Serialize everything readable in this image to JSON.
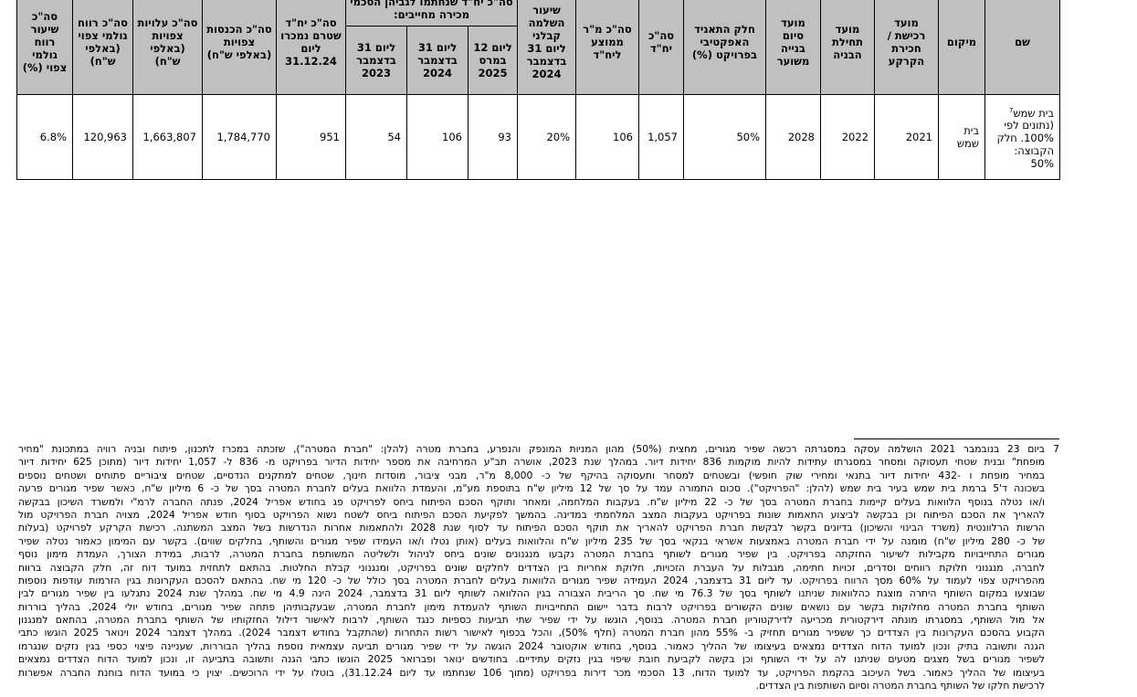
{
  "table": {
    "headers": {
      "name": "שם",
      "location": "מיקום",
      "land_purchase": "מועד רכישת / חכירת הקרקע",
      "construction_start": "מועד תחילת הבניה",
      "construction_end": "מועד סיום בנייה משוער",
      "effective_share": "חלק התאגיד האפקטיבי בפרויקט (%)",
      "total_units": "סה\"כ יח\"ד",
      "avg_sqm": "סה\"כ מ\"ר ממוצע ליח\"ד",
      "engineering_completion": "שיעור השלמה קבלני ליום 31 בדצמבר 2024",
      "signed_group": "סה\"כ יח\"ד שנחתמו לגביהן הסכמי מכירה מחייבים:",
      "signed_mar2025": "ליום 12 במרס 2025",
      "signed_dec2024": "ליום 31 בדצמבר 2024",
      "signed_dec2023": "ליום 31 בדצמבר 2023",
      "unsold_units": "סה\"כ יח\"ד שטרם נמכרו ליום 31.12.24",
      "expected_revenue": "סה\"כ הכנסות צפויות (באלפי ש\"ח)",
      "expected_costs": "סה\"כ עלויות צפויות (באלפי ש\"ח)",
      "expected_gross_profit": "סה\"כ רווח גולמי צפוי (באלפי ש\"ח)",
      "expected_gross_margin": "סה\"כ שיעור רווח גולמי צפוי (%)"
    },
    "row": {
      "name": "בית שמש",
      "name_footnote": "7",
      "name_note": "(נתונים לפי 100%. חלק הקבוצה: 50%",
      "location": "בית שמש",
      "land_purchase": "2021",
      "construction_start": "2022",
      "construction_end": "2028",
      "effective_share": "50%",
      "total_units": "1,057",
      "avg_sqm": "106",
      "engineering_completion": "20%",
      "signed_mar2025": "93",
      "signed_dec2024": "106",
      "signed_dec2023": "54",
      "unsold_units": "951",
      "expected_revenue": "1,784,770",
      "expected_costs": "1,663,807",
      "expected_gross_profit": "120,963",
      "expected_gross_margin": "6.8%"
    }
  },
  "footnote": {
    "number": "7",
    "lines": [
      "ביום 23 בנובמבר 2021 הושלמה עסקה במסגרתה רכשה שפיר מגורים, מחצית (50%) מהון המניות המונפק והנפרע, בחברת מטרה (להלן: \"חברת המטרה\"), שזכתה במכרז לתכנון, פיתוח ובניה רוויה במתכונת \"מחיר",
      "מופחת\" ובנית שטחי תעסוקה ומסחר במסגרתו עתידות להיות מוקמות 836 יחידות דיור. במהלך שנת 2023, אושרה תב\"ע המרחיבה את מספר יחידות הדיור בפרויקט מ- 836 ל- 1,057 יחידות דיור (מתוכן 625 יחידות דיור",
      "במחיר מופחת ו -432 יחידות דיור בתנאי ומחירי שוק חופשי) ובשטחים למסחר ותעסוקה בהיקף של כ- 8,000 מ\"ר, מבני ציבור, מוסדות חינוך, שטחים למתקנים הנדסיים, שטחים ציבוריים פתוחים ושטחים נוספים",
      "בשכונה ד'5 ברמת בית שמש בעיר בית שמש (להלן: \"הפרויקט\"). סכום התמורה עמד על סך של 12 מיליון ש\"ח בתוספת מע\"מ, והעמדת הלוואת בעלים לחברת המטרה בסך של כ- 6 מיליון ש\"ח, כאשר שפיר מגורים פרעה",
      "ו/או נטלה בנוסף הלוואות בעלים קיימות בחברת המטרה בסך של כ- 22 מיליון ש\"ח. בעקבות המלחמה, ומאחר ותוקף הסכם הפיתוח ביחס לפרויקט פג בחודש אפריל 2024, פנתה החברה לרמ\"י ולמשרד השיכון בבקשה",
      "להאריך את הסכם הפיתוח וכן בבקשה לביצוע התאמות שונות בפרויקט בעקבות המצב המלחמתי במדינה. בהמשך לפקיעת הסכם הפיתוח ביחס לשטח נשוא הפרויקט בסוף חודש אפריל 2024, מצויה חברת הפרויקט מול",
      "הרשות הרלוונטית (משרד הבינוי והשיכון) בדיונים בקשר לבקשת חברת הפרויקט להאריך את תוקף הסכם הפיתוח עד לסוף שנת 2028 ולהתאמות אחרות הנדרשות בשל המצב המשתנה. רכישת הקרקע לפרויקט (בעלות",
      "של כ- 280 מיליון ש\"ח) מומנה על ידי חברת המטרה באמצעות אשראי בנקאי בסך של 235 מיליון ש\"ח והלוואות בעלים (אותן נטלו ו/או העמידו שפיר מגורים והשותף, בחלקים שווים). בקשר עם המימון כאמור נטלה שפיר",
      "מגורים התחייבויות מקבילות לשיעור החזקתה בפרויקט. בין שפיר מגורים לשותף בחברת המטרה נקבעו מנגנונים שונים ביחס לניהול ולשליטה המשותפת בחברת המטרה, לרבות, במידת הצורך, העמדת מימון נוסף",
      "לחברה, מנגנוני חלוקת רווחים וסדרים, זכויות חתימה, מגבלות על העברת הזכויות, חלוקת אחריות בין הצדדים לחלקים שונים בפרויקט, ומנגנוני קבלת החלטות. בהתאם לתחזית במועד דוח זה, חלק הקבוצה ברווח",
      "מהפרויקט צפוי לעמוד על 60% מסך הרווח בפרויקט. עד ליום 31 בדצמבר, 2024 העמידה שפיר מגורים הלוואות בעלים לחברת המטרה בסך כולל של כ- 120 מי שח. בהתאם להסכם העקרונות בגין הזרמות עודפות נוספות",
      "שבוצעו במקום השותף היתרה מוצגת כהלוואות שניתנו לשותף בסך של 76.3 מי שח. סך הריבית הצבורה בגין ההלוואה לשותף ליום 31 בדצמבר, 2024 הינה 4.9 מי שח. במהלך שנת 2024 נתגלעו בין שפיר מגורים לבין",
      "השותף בחברת המטרה מחלוקות בקשר עם נושאים שונים הקשורים בפרויקט לרבות בדבר יישום התחייבויות השותף להעמדת מימון לחברת המטרה, שבעקבותיהן פתחה שפיר מגורים, בחודש יולי 2024, בהליך בוררות",
      "אל מול השותף, במסגרתו מונתה דירקטורית מכריעה לדירקטוריון חברת המטרה. בנוסף, הוגשו על ידי שפיר שתי תביעות כספיות כנגד השותף, לרבות לאישור דילול החזקותיו של השותף בחברת המטרה, בהתאם למנגנון",
      "הקבוע בהסכם העקרונות בין הצדדים כך ששפיר מגורים תחזיק ב- 55% מהון חברת המטרה (חלף 50%), והכל בכפוף לאישור רשות התחרות (שהתקבל בחודש דצמבר 2024). במהלך דצמבר 2024 וינואר 2025 הוגשו כתבי",
      "הגנה ותשובה בתיק ונכון למועד הדוח הצדדים נמצאים בעיצומו של ההליך כאמור. בנוסף, בחודש אוקטובר 2024 הוגשה על ידי שפיר מגורים תביעה עצמאית נוספת בהליך הבוררות, שעניינה פיצוי כספי בגין נזקים שנגרמו",
      "לשפיר מגורים בשל מצגים מטעים שניתנו לה על ידי השותף וכן בקשה לקביעת חובת שיפוי בגין נזקים עתידיים. בחודשים ינואר ופברואר 2025 הוגשו כתבי הגנה ותשובה בתביעה זו, ונכון למועד הדוח הצדדים נמצאים",
      "בעיצומו של ההליך כאמור. בשל העיכוב בהקמת הפרויקט, עד למועד הדוח, 13 הסכמי מכר דירות בפרויקט (מתוך 106 שנחתמו עד ליום 31.12.24), בוטלו על ידי הרוכשים. יצוין כי במועד הדוח בוחנת החברה אפשרות",
      "לרכישת חלקו של השותף בחברת המטרה וסיום השותפות בין הצדדים."
    ]
  },
  "colors": {
    "header_bg": "#c0c0c0",
    "border": "#000000"
  }
}
